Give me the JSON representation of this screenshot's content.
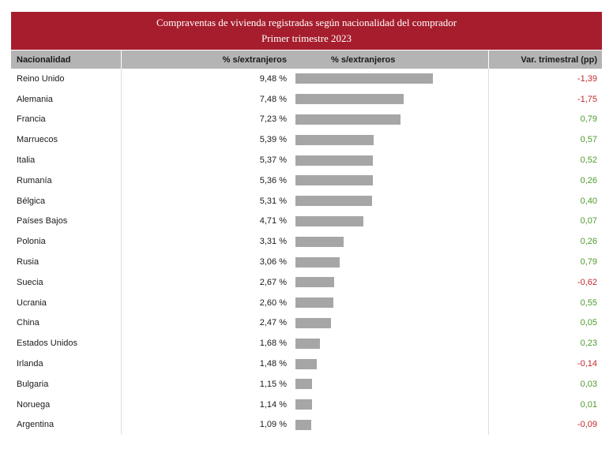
{
  "chart_data": {
    "type": "table",
    "title": "Compraventas de vivienda registradas según nacionalidad del comprador",
    "subtitle": "Primer trimestre 2023",
    "columns": [
      "Nacionalidad",
      "% s/extranjeros",
      "% s/extranjeros",
      "Var. trimestral (pp)"
    ],
    "value_suffix": " %",
    "bar_max": 10,
    "colors": {
      "title_bg": "#a61e2d",
      "header_bg": "#b4b4b4",
      "bar": "#a6a6a6",
      "positive": "#4e9a2b",
      "negative": "#c0282d"
    },
    "rows": [
      {
        "nationality": "Reino Unido",
        "pct": "9,48",
        "value": 9.48,
        "var": "-1,39"
      },
      {
        "nationality": "Alemania",
        "pct": "7,48",
        "value": 7.48,
        "var": "-1,75"
      },
      {
        "nationality": "Francia",
        "pct": "7,23",
        "value": 7.23,
        "var": "0,79"
      },
      {
        "nationality": "Marruecos",
        "pct": "5,39",
        "value": 5.39,
        "var": "0,57"
      },
      {
        "nationality": "Italia",
        "pct": "5,37",
        "value": 5.37,
        "var": "0,52"
      },
      {
        "nationality": "Rumanía",
        "pct": "5,36",
        "value": 5.36,
        "var": "0,26"
      },
      {
        "nationality": "Bélgica",
        "pct": "5,31",
        "value": 5.31,
        "var": "0,40"
      },
      {
        "nationality": "Países Bajos",
        "pct": "4,71",
        "value": 4.71,
        "var": "0,07"
      },
      {
        "nationality": "Polonia",
        "pct": "3,31",
        "value": 3.31,
        "var": "0,26"
      },
      {
        "nationality": "Rusia",
        "pct": "3,06",
        "value": 3.06,
        "var": "0,79"
      },
      {
        "nationality": "Suecia",
        "pct": "2,67",
        "value": 2.67,
        "var": "-0,62"
      },
      {
        "nationality": "Ucrania",
        "pct": "2,60",
        "value": 2.6,
        "var": "0,55"
      },
      {
        "nationality": "China",
        "pct": "2,47",
        "value": 2.47,
        "var": "0,05"
      },
      {
        "nationality": "Estados Unidos",
        "pct": "1,68",
        "value": 1.68,
        "var": "0,23"
      },
      {
        "nationality": "Irlanda",
        "pct": "1,48",
        "value": 1.48,
        "var": "-0,14"
      },
      {
        "nationality": "Bulgaria",
        "pct": "1,15",
        "value": 1.15,
        "var": "0,03"
      },
      {
        "nationality": "Noruega",
        "pct": "1,14",
        "value": 1.14,
        "var": "0,01"
      },
      {
        "nationality": "Argentina",
        "pct": "1,09",
        "value": 1.09,
        "var": "-0,09"
      }
    ]
  }
}
